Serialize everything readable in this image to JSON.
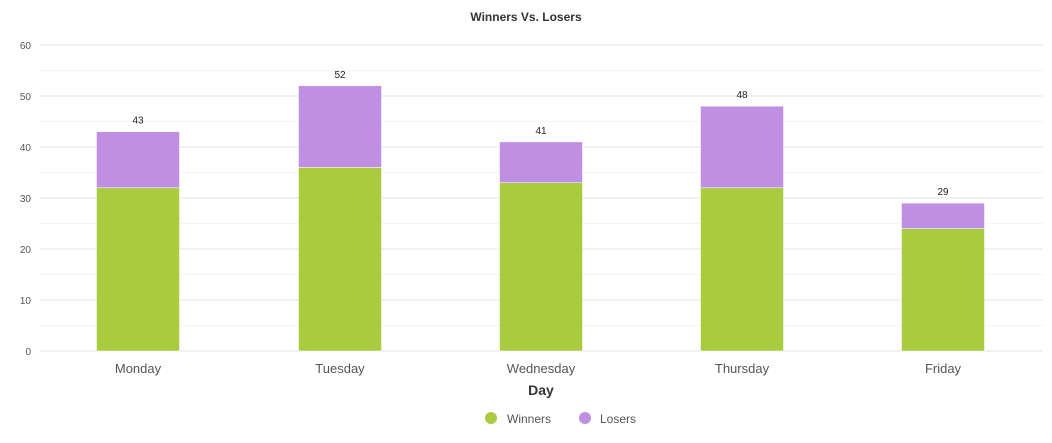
{
  "chart_data": {
    "type": "bar",
    "stacked": true,
    "title": "Winners Vs. Losers",
    "xlabel": "Day",
    "ylabel": "",
    "categories": [
      "Monday",
      "Tuesday",
      "Wednesday",
      "Thursday",
      "Friday"
    ],
    "series": [
      {
        "name": "Winners",
        "color": "#a8cb3f",
        "values": [
          32,
          36,
          33,
          32,
          24
        ]
      },
      {
        "name": "Losers",
        "color": "#bf8fe3",
        "values": [
          11,
          16,
          8,
          16,
          5
        ]
      }
    ],
    "totals": [
      43,
      52,
      41,
      48,
      29
    ],
    "ylim": [
      0,
      60
    ],
    "yticks": [
      0,
      10,
      20,
      30,
      40,
      50,
      60
    ],
    "grid": true,
    "legend_position": "bottom"
  }
}
